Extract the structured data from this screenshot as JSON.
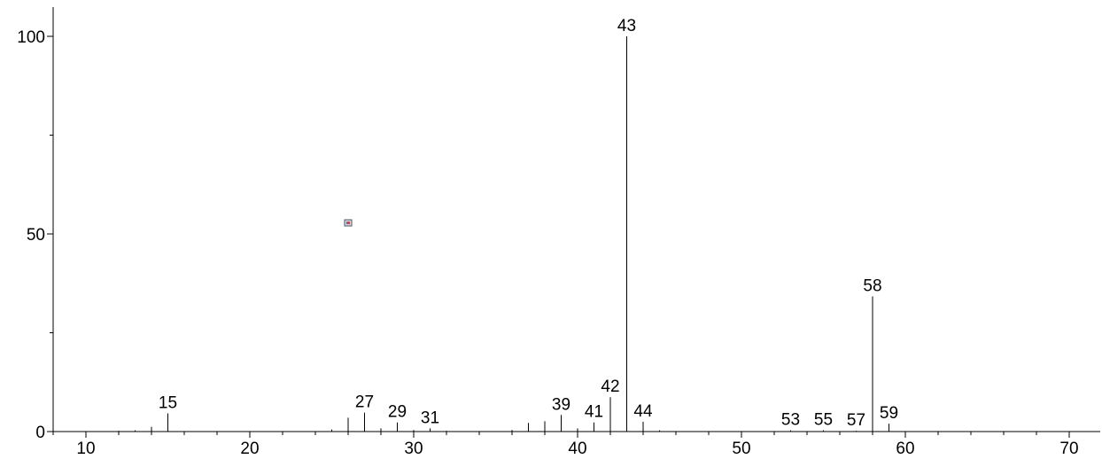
{
  "chart_data": {
    "type": "bar",
    "title": "",
    "xlabel": "",
    "ylabel": "",
    "xlim": [
      8,
      72
    ],
    "ylim": [
      0,
      107
    ],
    "x_ticks": [
      10,
      20,
      30,
      40,
      50,
      60,
      70
    ],
    "x_tick_labels": [
      "10",
      "20",
      "30",
      "40",
      "50",
      "60",
      "70"
    ],
    "y_ticks": [
      0,
      50,
      100
    ],
    "y_tick_labels": [
      "0",
      "50",
      "100"
    ],
    "grid": false,
    "legend": "none",
    "series": [
      {
        "x": [
          12,
          13,
          14,
          15,
          25,
          26,
          27,
          28,
          29,
          30,
          31,
          32,
          36,
          37,
          38,
          39,
          40,
          41,
          42,
          43,
          44,
          45,
          53,
          55,
          57,
          58,
          59
        ],
        "y": [
          0.2,
          0.3,
          1.2,
          4.6,
          0.5,
          3.5,
          4.8,
          0.8,
          2.3,
          0.4,
          0.8,
          0.2,
          0.4,
          2.2,
          2.6,
          4.2,
          0.8,
          2.3,
          8.7,
          100,
          2.5,
          0.3,
          0.3,
          0.3,
          0.2,
          34.2,
          2.0
        ]
      }
    ],
    "peak_labels": [
      {
        "x": 15,
        "y": 4.6,
        "text": "15"
      },
      {
        "x": 27,
        "y": 4.8,
        "text": "27"
      },
      {
        "x": 29,
        "y": 2.3,
        "text": "29"
      },
      {
        "x": 31,
        "y": 0.8,
        "text": "31"
      },
      {
        "x": 39,
        "y": 4.2,
        "text": "39"
      },
      {
        "x": 41,
        "y": 2.3,
        "text": "41"
      },
      {
        "x": 42,
        "y": 8.7,
        "text": "42"
      },
      {
        "x": 43,
        "y": 100,
        "text": "43"
      },
      {
        "x": 44,
        "y": 2.5,
        "text": "44"
      },
      {
        "x": 53,
        "y": 0.3,
        "text": "53"
      },
      {
        "x": 55,
        "y": 0.3,
        "text": "55"
      },
      {
        "x": 57,
        "y": 0.2,
        "text": "57"
      },
      {
        "x": 58,
        "y": 34.2,
        "text": "58"
      },
      {
        "x": 59,
        "y": 2.0,
        "text": "59"
      }
    ]
  }
}
